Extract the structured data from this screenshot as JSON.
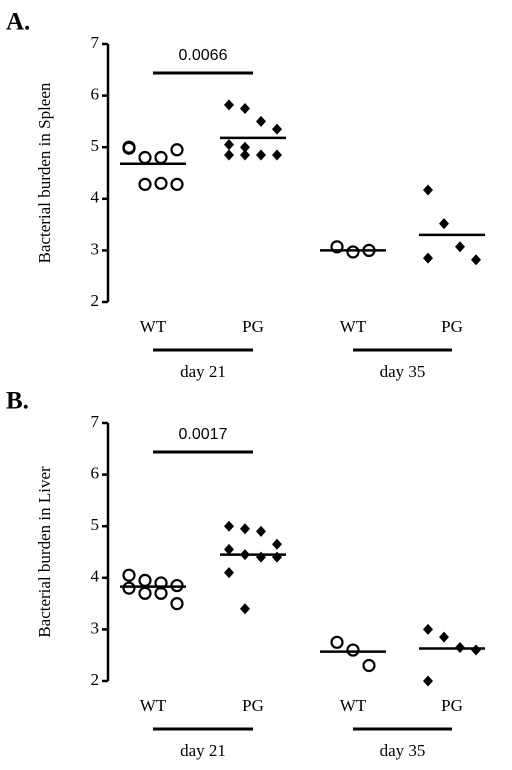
{
  "chart_data": [
    {
      "type": "dot",
      "panel_label": "A.",
      "ylabel": "Bacterial burden in Spleen",
      "ylim": [
        2,
        7
      ],
      "yticks": [
        2,
        3,
        4,
        5,
        6,
        7
      ],
      "categories": [
        "WT",
        "PG",
        "WT",
        "PG"
      ],
      "groups": [
        "day 21",
        "day 35"
      ],
      "markers": [
        "open-circle",
        "filled-diamond",
        "open-circle",
        "filled-diamond"
      ],
      "color": "#000000",
      "points": [
        [
          4.98,
          4.8,
          4.8,
          4.95,
          5.0,
          4.28,
          4.3,
          4.28
        ],
        [
          5.82,
          5.75,
          5.5,
          5.35,
          5.05,
          5.0,
          4.85,
          4.85,
          4.85,
          4.85
        ],
        [
          3.07,
          2.97,
          3.0
        ],
        [
          4.17,
          3.52,
          3.07,
          2.82,
          2.85
        ]
      ],
      "center_lines": [
        4.68,
        5.18,
        3.0,
        3.3
      ],
      "comparison": "0.0066"
    },
    {
      "type": "dot",
      "panel_label": "B.",
      "ylabel": "Bacterial burden in Liver",
      "ylim": [
        2,
        7
      ],
      "yticks": [
        2,
        3,
        4,
        5,
        6,
        7
      ],
      "categories": [
        "WT",
        "PG",
        "WT",
        "PG"
      ],
      "groups": [
        "day 21",
        "day 35"
      ],
      "markers": [
        "open-circle",
        "filled-diamond",
        "open-circle",
        "filled-diamond"
      ],
      "color": "#000000",
      "points": [
        [
          4.05,
          3.95,
          3.9,
          3.85,
          3.8,
          3.7,
          3.7,
          3.5
        ],
        [
          5.0,
          4.95,
          4.9,
          4.65,
          4.55,
          4.45,
          4.4,
          4.4,
          4.1,
          3.4
        ],
        [
          2.75,
          2.6,
          2.3
        ],
        [
          3.0,
          2.85,
          2.65,
          2.6,
          2.0
        ]
      ],
      "center_lines": [
        3.83,
        4.45,
        2.57,
        2.63
      ],
      "comparison": "0.0017"
    }
  ]
}
